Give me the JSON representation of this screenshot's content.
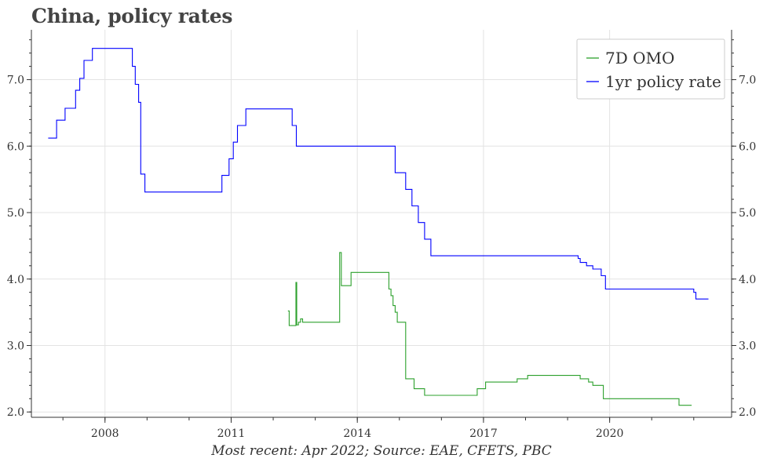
{
  "title": "China, policy rates",
  "footnote": "Most recent: Apr 2022; Source: EAE, CFETS, PBC",
  "chart_data": {
    "type": "line",
    "title": "China, policy rates",
    "xlabel": "",
    "ylabel": "",
    "x_tick_labels": [
      "2008",
      "2011",
      "2014",
      "2017",
      "2020"
    ],
    "x_ticks": [
      2008,
      2011,
      2014,
      2017,
      2020
    ],
    "xlim": [
      2006.25,
      2022.9
    ],
    "y_tick_labels": [
      "2.0",
      "3.0",
      "4.0",
      "5.0",
      "6.0",
      "7.0"
    ],
    "y_ticks": [
      2.0,
      3.0,
      4.0,
      5.0,
      6.0,
      7.0
    ],
    "ylim": [
      1.92,
      7.75
    ],
    "grid": true,
    "legend_position": "top-right",
    "series": [
      {
        "name": "7D OMO",
        "color": "#2ca02c",
        "step": true,
        "points": [
          [
            2012.35,
            3.52
          ],
          [
            2012.38,
            3.3
          ],
          [
            2012.52,
            3.3
          ],
          [
            2012.54,
            3.95
          ],
          [
            2012.56,
            3.31
          ],
          [
            2012.6,
            3.35
          ],
          [
            2012.65,
            3.4
          ],
          [
            2012.7,
            3.35
          ],
          [
            2013.55,
            3.35
          ],
          [
            2013.58,
            4.4
          ],
          [
            2013.62,
            3.9
          ],
          [
            2013.8,
            3.9
          ],
          [
            2013.85,
            4.1
          ],
          [
            2014.2,
            4.1
          ],
          [
            2014.7,
            4.1
          ],
          [
            2014.75,
            3.85
          ],
          [
            2014.8,
            3.75
          ],
          [
            2014.85,
            3.6
          ],
          [
            2014.9,
            3.5
          ],
          [
            2014.95,
            3.35
          ],
          [
            2015.1,
            3.35
          ],
          [
            2015.15,
            2.5
          ],
          [
            2015.3,
            2.5
          ],
          [
            2015.35,
            2.35
          ],
          [
            2015.5,
            2.35
          ],
          [
            2015.6,
            2.25
          ],
          [
            2016.5,
            2.25
          ],
          [
            2016.8,
            2.25
          ],
          [
            2016.85,
            2.35
          ],
          [
            2017.05,
            2.45
          ],
          [
            2017.5,
            2.45
          ],
          [
            2017.75,
            2.45
          ],
          [
            2017.8,
            2.5
          ],
          [
            2018.05,
            2.55
          ],
          [
            2019.0,
            2.55
          ],
          [
            2019.25,
            2.55
          ],
          [
            2019.3,
            2.5
          ],
          [
            2019.5,
            2.45
          ],
          [
            2019.6,
            2.4
          ],
          [
            2019.8,
            2.4
          ],
          [
            2019.85,
            2.2
          ],
          [
            2020.0,
            2.2
          ],
          [
            2021.5,
            2.2
          ],
          [
            2021.6,
            2.2
          ],
          [
            2021.65,
            2.1
          ],
          [
            2021.95,
            2.1
          ]
        ]
      },
      {
        "name": "1yr policy rate",
        "color": "#0000ff",
        "step": true,
        "points": [
          [
            2006.65,
            6.12
          ],
          [
            2006.85,
            6.39
          ],
          [
            2007.05,
            6.57
          ],
          [
            2007.3,
            6.84
          ],
          [
            2007.4,
            7.02
          ],
          [
            2007.5,
            7.29
          ],
          [
            2007.7,
            7.47
          ],
          [
            2008.55,
            7.47
          ],
          [
            2008.65,
            7.2
          ],
          [
            2008.72,
            6.93
          ],
          [
            2008.8,
            6.66
          ],
          [
            2008.85,
            5.58
          ],
          [
            2008.95,
            5.31
          ],
          [
            2010.7,
            5.31
          ],
          [
            2010.78,
            5.56
          ],
          [
            2010.95,
            5.81
          ],
          [
            2011.05,
            6.06
          ],
          [
            2011.15,
            6.31
          ],
          [
            2011.35,
            6.56
          ],
          [
            2012.4,
            6.56
          ],
          [
            2012.45,
            6.31
          ],
          [
            2012.55,
            6.0
          ],
          [
            2013.5,
            6.0
          ],
          [
            2014.5,
            6.0
          ],
          [
            2014.85,
            6.0
          ],
          [
            2014.9,
            5.6
          ],
          [
            2015.15,
            5.35
          ],
          [
            2015.3,
            5.1
          ],
          [
            2015.45,
            4.85
          ],
          [
            2015.6,
            4.6
          ],
          [
            2015.75,
            4.35
          ],
          [
            2016.5,
            4.35
          ],
          [
            2017.5,
            4.35
          ],
          [
            2018.5,
            4.35
          ],
          [
            2019.2,
            4.35
          ],
          [
            2019.25,
            4.31
          ],
          [
            2019.3,
            4.25
          ],
          [
            2019.45,
            4.2
          ],
          [
            2019.6,
            4.15
          ],
          [
            2019.8,
            4.05
          ],
          [
            2019.9,
            3.85
          ],
          [
            2020.0,
            3.85
          ],
          [
            2021.0,
            3.85
          ],
          [
            2021.95,
            3.85
          ],
          [
            2022.0,
            3.8
          ],
          [
            2022.05,
            3.7
          ],
          [
            2022.35,
            3.7
          ]
        ]
      }
    ]
  }
}
